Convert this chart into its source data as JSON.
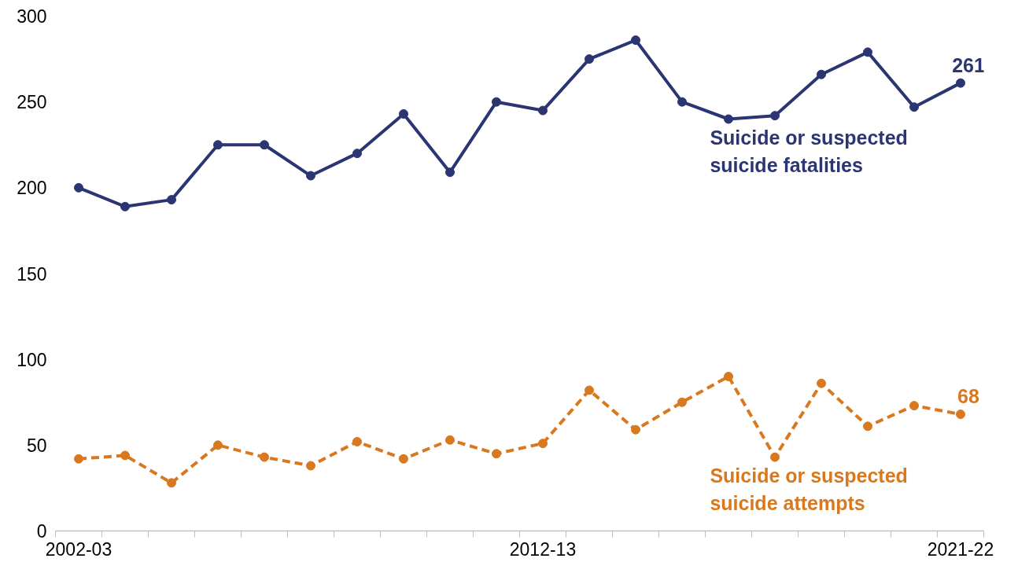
{
  "chart_data": {
    "type": "line",
    "categories": [
      "2002-03",
      null,
      null,
      null,
      null,
      null,
      null,
      null,
      null,
      null,
      "2012-13",
      null,
      null,
      null,
      null,
      null,
      null,
      null,
      null,
      "2021-22"
    ],
    "ylim": [
      0,
      300
    ],
    "yticks": [
      0,
      50,
      100,
      150,
      200,
      250,
      300
    ],
    "grid": false,
    "legend": false,
    "marker": "circle",
    "series": [
      {
        "name": "Suicide or suspected suicide fatalities",
        "color": "#2b3572",
        "line_style": "solid",
        "values": [
          200,
          189,
          193,
          225,
          225,
          207,
          220,
          243,
          209,
          250,
          245,
          275,
          286,
          250,
          240,
          242,
          266,
          279,
          247,
          261
        ],
        "value_labels": [
          null,
          null,
          null,
          null,
          null,
          null,
          null,
          null,
          null,
          null,
          null,
          null,
          null,
          null,
          null,
          null,
          null,
          null,
          null,
          "261"
        ]
      },
      {
        "name": "Suicide or suspected suicide attempts",
        "color": "#d9791f",
        "line_style": "dashed",
        "values": [
          42,
          44,
          28,
          50,
          43,
          38,
          52,
          42,
          53,
          45,
          51,
          82,
          59,
          75,
          90,
          43,
          86,
          61,
          73,
          68
        ],
        "value_labels": [
          null,
          null,
          null,
          null,
          null,
          null,
          null,
          null,
          null,
          null,
          null,
          null,
          null,
          null,
          null,
          null,
          null,
          null,
          null,
          "68"
        ]
      }
    ]
  }
}
